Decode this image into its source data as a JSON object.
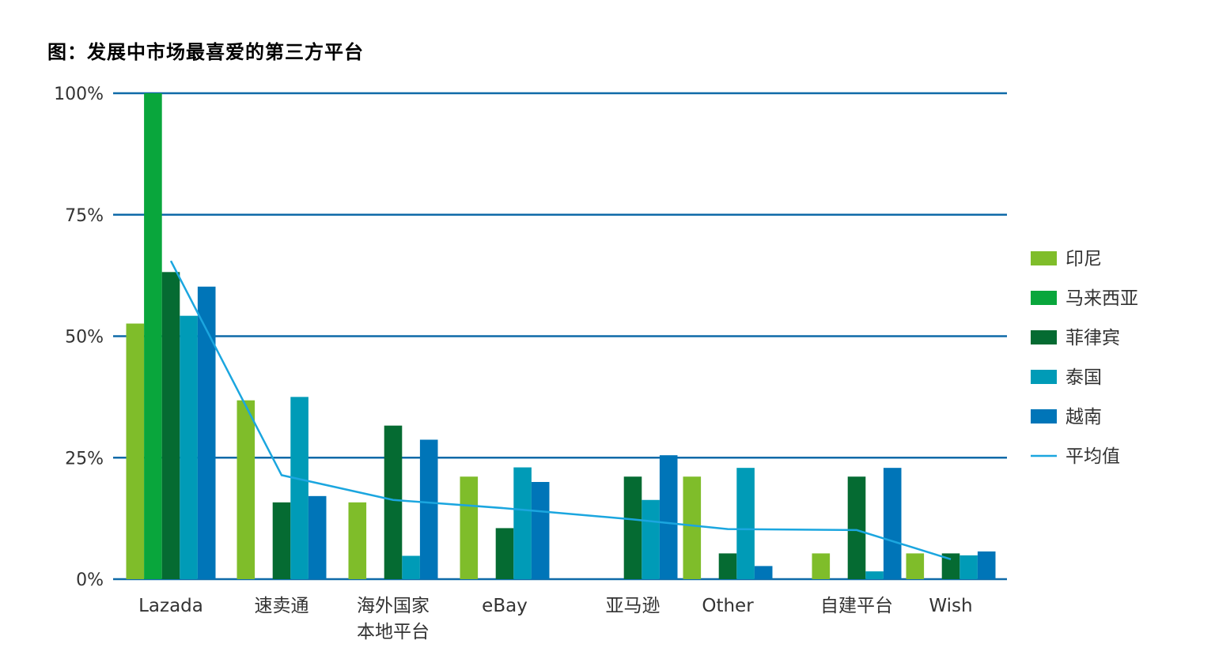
{
  "chart_data": {
    "type": "bar",
    "title": "图：发展中市场最喜爱的第三方平台",
    "y_ticks": [
      "0%",
      "25%",
      "50%",
      "75%",
      "100%"
    ],
    "ylim": [
      0,
      100
    ],
    "grid": true,
    "legend_position": "right",
    "categories": [
      [
        "Lazada"
      ],
      [
        "速卖通"
      ],
      [
        "海外国家",
        "本地平台"
      ],
      [
        "eBay"
      ],
      [
        "亚马逊"
      ],
      [
        "Other"
      ],
      [
        "自建平台"
      ],
      [
        "Wish"
      ]
    ],
    "series": [
      {
        "name": "印尼",
        "color": "#7fbd2a",
        "values": [
          52.6,
          36.8,
          15.8,
          21.1,
          0,
          21.1,
          5.3,
          5.3
        ]
      },
      {
        "name": "马来西亚",
        "color": "#09a63c",
        "values": [
          100,
          0,
          0,
          0,
          0,
          0,
          0,
          0
        ]
      },
      {
        "name": "菲律宾",
        "color": "#056b32",
        "values": [
          63.2,
          15.8,
          31.6,
          10.5,
          21.1,
          5.3,
          21.1,
          5.3
        ]
      },
      {
        "name": "泰国",
        "color": "#009bb7",
        "values": [
          54.2,
          37.5,
          4.8,
          23.0,
          16.3,
          22.9,
          1.6,
          4.9
        ]
      },
      {
        "name": "越南",
        "color": "#0075b8",
        "values": [
          60.2,
          17.1,
          28.7,
          20.0,
          25.5,
          2.7,
          22.9,
          5.7
        ]
      }
    ],
    "average_line": {
      "name": "平均值",
      "color": "#1ba6df",
      "values": [
        65.5,
        21.4,
        16.3,
        14.6,
        12.3,
        10.3,
        10.1,
        4.1
      ]
    }
  }
}
